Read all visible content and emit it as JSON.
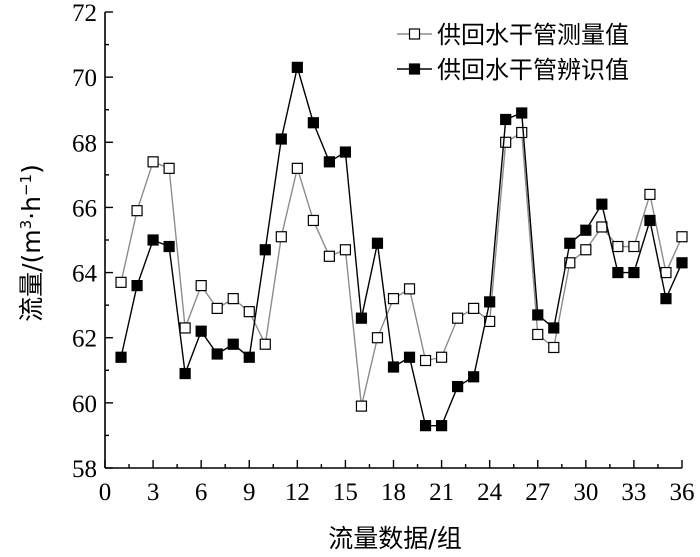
{
  "chart_data": {
    "type": "line",
    "xlabel": "流量数据/组",
    "ylabel_main": "流量/(m",
    "ylabel_sup1": "3",
    "ylabel_mid": "·h",
    "ylabel_sup2": "−1",
    "ylabel_end": ")",
    "xlim": [
      0,
      36
    ],
    "ylim": [
      58,
      72
    ],
    "xticks": [
      0,
      3,
      6,
      9,
      12,
      15,
      18,
      21,
      24,
      27,
      30,
      33,
      36
    ],
    "yticks": [
      58,
      60,
      62,
      64,
      66,
      68,
      70,
      72
    ],
    "grid": false,
    "legend_position": "top-right",
    "x": [
      1,
      2,
      3,
      4,
      5,
      6,
      7,
      8,
      9,
      10,
      11,
      12,
      13,
      14,
      15,
      16,
      17,
      18,
      19,
      20,
      21,
      22,
      23,
      24,
      25,
      26,
      27,
      28,
      29,
      30,
      31,
      32,
      33,
      34,
      35,
      36
    ],
    "series": [
      {
        "name": "供回水干管测量值",
        "marker": "open-square",
        "line_color": "#8c8c8c",
        "values": [
          63.7,
          65.9,
          67.4,
          67.2,
          62.3,
          63.6,
          62.9,
          63.2,
          62.8,
          61.8,
          65.1,
          67.2,
          65.6,
          64.5,
          64.7,
          59.9,
          62.0,
          63.2,
          63.5,
          61.3,
          61.4,
          62.6,
          62.9,
          62.5,
          68.0,
          68.3,
          62.1,
          61.7,
          64.3,
          64.7,
          65.4,
          64.8,
          64.8,
          66.4,
          64.0,
          65.1
        ]
      },
      {
        "name": "供回水干管辨识值",
        "marker": "filled-square",
        "line_color": "#000000",
        "values": [
          61.4,
          63.6,
          65.0,
          64.8,
          60.9,
          62.2,
          61.5,
          61.8,
          61.4,
          64.7,
          68.1,
          70.3,
          68.6,
          67.4,
          67.7,
          62.6,
          64.9,
          61.1,
          61.4,
          59.3,
          59.3,
          60.5,
          60.8,
          63.1,
          68.7,
          68.9,
          62.7,
          62.3,
          64.9,
          65.3,
          66.1,
          64.0,
          64.0,
          65.6,
          63.2,
          64.3
        ]
      }
    ]
  }
}
